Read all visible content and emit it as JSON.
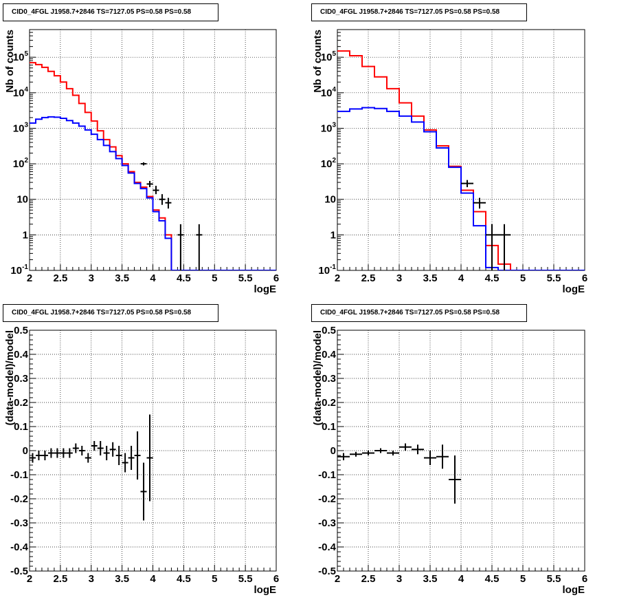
{
  "chart_data": [
    {
      "type": "line",
      "title": "CID0_4FGL J1958.7+2846 TS=7127.05 PS=0.58 PS=0.58",
      "xlabel": "logE",
      "ylabel": "Nb of counts",
      "xlim": [
        2,
        6
      ],
      "ylim": [
        0.1,
        600000
      ],
      "yscale": "log",
      "grid": true,
      "x_ticks": [
        "2",
        "2.5",
        "3",
        "3.5",
        "4",
        "4.5",
        "5",
        "5.5",
        "6"
      ],
      "y_ticks": [
        "10^-1",
        "1",
        "10",
        "10^2",
        "10^3",
        "10^4",
        "10^5"
      ],
      "bin_edges": [
        2.0,
        2.1,
        2.2,
        2.3,
        2.4,
        2.5,
        2.6,
        2.7,
        2.8,
        2.9,
        3.0,
        3.1,
        3.2,
        3.3,
        3.4,
        3.5,
        3.6,
        3.7,
        3.8,
        3.9,
        4.0,
        4.1,
        4.2,
        4.3,
        4.4,
        4.5,
        4.6,
        4.7,
        4.8,
        4.9,
        5.0,
        5.1,
        5.2,
        5.3,
        5.4,
        5.5,
        5.6,
        5.7,
        5.8,
        5.9,
        6.0
      ],
      "series": [
        {
          "color": "#ff0000",
          "values": [
            70000,
            62000,
            52000,
            40000,
            30000,
            20000,
            13000,
            8500,
            5000,
            2800,
            1600,
            850,
            480,
            300,
            170,
            100,
            60,
            30,
            22,
            12,
            5,
            3,
            1,
            0.1,
            0.1,
            0.1,
            0.1,
            0.1,
            0.1,
            0.1,
            0.1,
            0.1,
            0.1,
            0.1,
            0.1,
            0.1,
            0.1,
            0.1,
            0.1,
            0.1
          ]
        },
        {
          "color": "#0000ff",
          "values": [
            1400,
            1800,
            2000,
            2100,
            2050,
            1900,
            1650,
            1400,
            1150,
            900,
            680,
            480,
            330,
            220,
            140,
            90,
            55,
            28,
            20,
            11,
            4.5,
            2.5,
            0.8,
            0.1,
            0.1,
            0.1,
            0.1,
            0.1,
            0.1,
            0.1,
            0.1,
            0.1,
            0.1,
            0.1,
            0.1,
            0.1,
            0.1,
            0.1,
            0.1,
            0.1
          ]
        }
      ],
      "points": [
        {
          "x": 3.85,
          "y": 100,
          "xerr": 0.05,
          "ylo": 90,
          "yhi": 110
        },
        {
          "x": 3.95,
          "y": 27,
          "xerr": 0.05,
          "ylo": 22,
          "yhi": 33
        },
        {
          "x": 4.05,
          "y": 18,
          "xerr": 0.05,
          "ylo": 14,
          "yhi": 24
        },
        {
          "x": 4.15,
          "y": 10,
          "xerr": 0.05,
          "ylo": 7,
          "yhi": 14
        },
        {
          "x": 4.25,
          "y": 8,
          "xerr": 0.05,
          "ylo": 5.5,
          "yhi": 11
        },
        {
          "x": 4.45,
          "y": 1,
          "xerr": 0.05,
          "ylo": 0.1,
          "yhi": 2
        },
        {
          "x": 4.75,
          "y": 1,
          "xerr": 0.05,
          "ylo": 0.1,
          "yhi": 2
        }
      ]
    },
    {
      "type": "line",
      "title": "CID0_4FGL J1958.7+2846 TS=7127.05 PS=0.58 PS=0.58",
      "xlabel": "logE",
      "ylabel": "Nb of counts",
      "xlim": [
        2,
        6
      ],
      "ylim": [
        0.1,
        600000
      ],
      "yscale": "log",
      "grid": true,
      "x_ticks": [
        "2",
        "2.5",
        "3",
        "3.5",
        "4",
        "4.5",
        "5",
        "5.5",
        "6"
      ],
      "y_ticks": [
        "10^-1",
        "1",
        "10",
        "10^2",
        "10^3",
        "10^4",
        "10^5"
      ],
      "bin_edges": [
        2.0,
        2.2,
        2.4,
        2.6,
        2.8,
        3.0,
        3.2,
        3.4,
        3.6,
        3.8,
        4.0,
        4.2,
        4.4,
        4.6,
        4.8,
        5.0,
        5.2,
        5.4,
        5.6,
        5.8,
        6.0
      ],
      "series": [
        {
          "color": "#ff0000",
          "values": [
            150000,
            110000,
            55000,
            28000,
            13000,
            5200,
            2200,
            900,
            320,
            85,
            18,
            4.5,
            0.5,
            0.15,
            0.1,
            0.1,
            0.1,
            0.1,
            0.1,
            0.1
          ]
        },
        {
          "color": "#0000ff",
          "values": [
            3000,
            3500,
            3800,
            3600,
            3000,
            2200,
            1500,
            800,
            280,
            80,
            15,
            1.8,
            0.12,
            0.1,
            0.1,
            0.1,
            0.1,
            0.1,
            0.1,
            0.1
          ]
        }
      ],
      "points": [
        {
          "x": 4.1,
          "y": 28,
          "xerr": 0.1,
          "ylo": 22,
          "yhi": 35
        },
        {
          "x": 4.3,
          "y": 8,
          "xerr": 0.1,
          "ylo": 5.5,
          "yhi": 11
        },
        {
          "x": 4.5,
          "y": 1,
          "xerr": 0.1,
          "ylo": 0.1,
          "yhi": 2
        },
        {
          "x": 4.7,
          "y": 1,
          "xerr": 0.1,
          "ylo": 0.1,
          "yhi": 2
        }
      ]
    },
    {
      "type": "scatter",
      "title": "CID0_4FGL J1958.7+2846 TS=7127.05 PS=0.58 PS=0.58",
      "xlabel": "logE",
      "ylabel": "(data-model)/model",
      "xlim": [
        2,
        6
      ],
      "ylim": [
        -0.5,
        0.5
      ],
      "grid": true,
      "x_ticks": [
        "2",
        "2.5",
        "3",
        "3.5",
        "4",
        "4.5",
        "5",
        "5.5",
        "6"
      ],
      "y_ticks": [
        "-0.5",
        "-0.4",
        "-0.3",
        "-0.2",
        "-0.1",
        "0",
        "0.1",
        "0.2",
        "0.3",
        "0.4",
        "0.5"
      ],
      "points": [
        {
          "x": 2.05,
          "y": -0.03,
          "xerr": 0.05,
          "yerr": 0.02
        },
        {
          "x": 2.15,
          "y": -0.02,
          "xerr": 0.05,
          "yerr": 0.02
        },
        {
          "x": 2.25,
          "y": -0.02,
          "xerr": 0.05,
          "yerr": 0.02
        },
        {
          "x": 2.35,
          "y": -0.01,
          "xerr": 0.05,
          "yerr": 0.02
        },
        {
          "x": 2.45,
          "y": -0.01,
          "xerr": 0.05,
          "yerr": 0.02
        },
        {
          "x": 2.55,
          "y": -0.01,
          "xerr": 0.05,
          "yerr": 0.02
        },
        {
          "x": 2.65,
          "y": -0.01,
          "xerr": 0.05,
          "yerr": 0.02
        },
        {
          "x": 2.75,
          "y": 0.01,
          "xerr": 0.05,
          "yerr": 0.02
        },
        {
          "x": 2.85,
          "y": 0.0,
          "xerr": 0.05,
          "yerr": 0.02
        },
        {
          "x": 2.95,
          "y": -0.03,
          "xerr": 0.05,
          "yerr": 0.02
        },
        {
          "x": 3.05,
          "y": 0.02,
          "xerr": 0.05,
          "yerr": 0.02
        },
        {
          "x": 3.15,
          "y": 0.01,
          "xerr": 0.05,
          "yerr": 0.03
        },
        {
          "x": 3.25,
          "y": -0.01,
          "xerr": 0.05,
          "yerr": 0.03
        },
        {
          "x": 3.35,
          "y": 0.005,
          "xerr": 0.05,
          "yerr": 0.03
        },
        {
          "x": 3.45,
          "y": -0.02,
          "xerr": 0.05,
          "yerr": 0.04
        },
        {
          "x": 3.55,
          "y": -0.05,
          "xerr": 0.05,
          "yerr": 0.04
        },
        {
          "x": 3.65,
          "y": -0.03,
          "xerr": 0.05,
          "yerr": 0.05
        },
        {
          "x": 3.75,
          "y": -0.02,
          "xerr": 0.05,
          "yerr": 0.1
        },
        {
          "x": 3.85,
          "y": -0.17,
          "xerr": 0.05,
          "yerr": 0.12
        },
        {
          "x": 3.95,
          "y": -0.03,
          "xerr": 0.05,
          "yerr": 0.18
        }
      ]
    },
    {
      "type": "scatter",
      "title": "CID0_4FGL J1958.7+2846 TS=7127.05 PS=0.58 PS=0.58",
      "xlabel": "logE",
      "ylabel": "(data-model)/model",
      "xlim": [
        2,
        6
      ],
      "ylim": [
        -0.5,
        0.5
      ],
      "grid": true,
      "x_ticks": [
        "2",
        "2.5",
        "3",
        "3.5",
        "4",
        "4.5",
        "5",
        "5.5",
        "6"
      ],
      "y_ticks": [
        "-0.5",
        "-0.4",
        "-0.3",
        "-0.2",
        "-0.1",
        "0",
        "0.1",
        "0.2",
        "0.3",
        "0.4",
        "0.5"
      ],
      "points": [
        {
          "x": 2.1,
          "y": -0.025,
          "xerr": 0.1,
          "yerr": 0.015
        },
        {
          "x": 2.3,
          "y": -0.015,
          "xerr": 0.1,
          "yerr": 0.01
        },
        {
          "x": 2.5,
          "y": -0.01,
          "xerr": 0.1,
          "yerr": 0.01
        },
        {
          "x": 2.7,
          "y": 0.0,
          "xerr": 0.1,
          "yerr": 0.01
        },
        {
          "x": 2.9,
          "y": -0.01,
          "xerr": 0.1,
          "yerr": 0.01
        },
        {
          "x": 3.1,
          "y": 0.015,
          "xerr": 0.1,
          "yerr": 0.015
        },
        {
          "x": 3.3,
          "y": 0.005,
          "xerr": 0.1,
          "yerr": 0.02
        },
        {
          "x": 3.5,
          "y": -0.03,
          "xerr": 0.1,
          "yerr": 0.03
        },
        {
          "x": 3.7,
          "y": -0.025,
          "xerr": 0.1,
          "yerr": 0.05
        },
        {
          "x": 3.9,
          "y": -0.12,
          "xerr": 0.1,
          "yerr": 0.1
        }
      ]
    }
  ]
}
